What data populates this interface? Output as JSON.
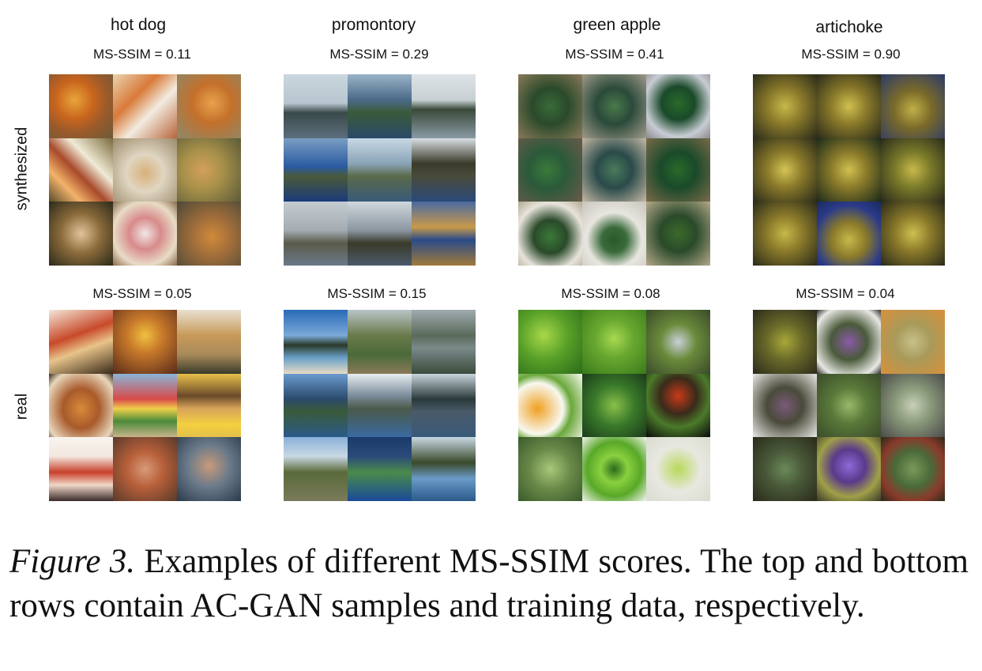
{
  "columns": [
    {
      "title": "hot dog",
      "synth_score": "MS-SSIM = 0.11",
      "real_score": "MS-SSIM = 0.05"
    },
    {
      "title": "promontory",
      "synth_score": "MS-SSIM = 0.29",
      "real_score": "MS-SSIM = 0.15"
    },
    {
      "title": "green apple",
      "synth_score": "MS-SSIM = 0.41",
      "real_score": "MS-SSIM = 0.08"
    },
    {
      "title": "artichoke",
      "synth_score": "MS-SSIM = 0.90",
      "real_score": "MS-SSIM = 0.04"
    }
  ],
  "rows": {
    "synthesized": "synthesized",
    "real": "real"
  },
  "caption": {
    "label": "Figure 3.",
    "text": " Examples of different MS-SSIM scores.  The top and bottom rows contain AC-GAN samples and training data, respectively."
  }
}
